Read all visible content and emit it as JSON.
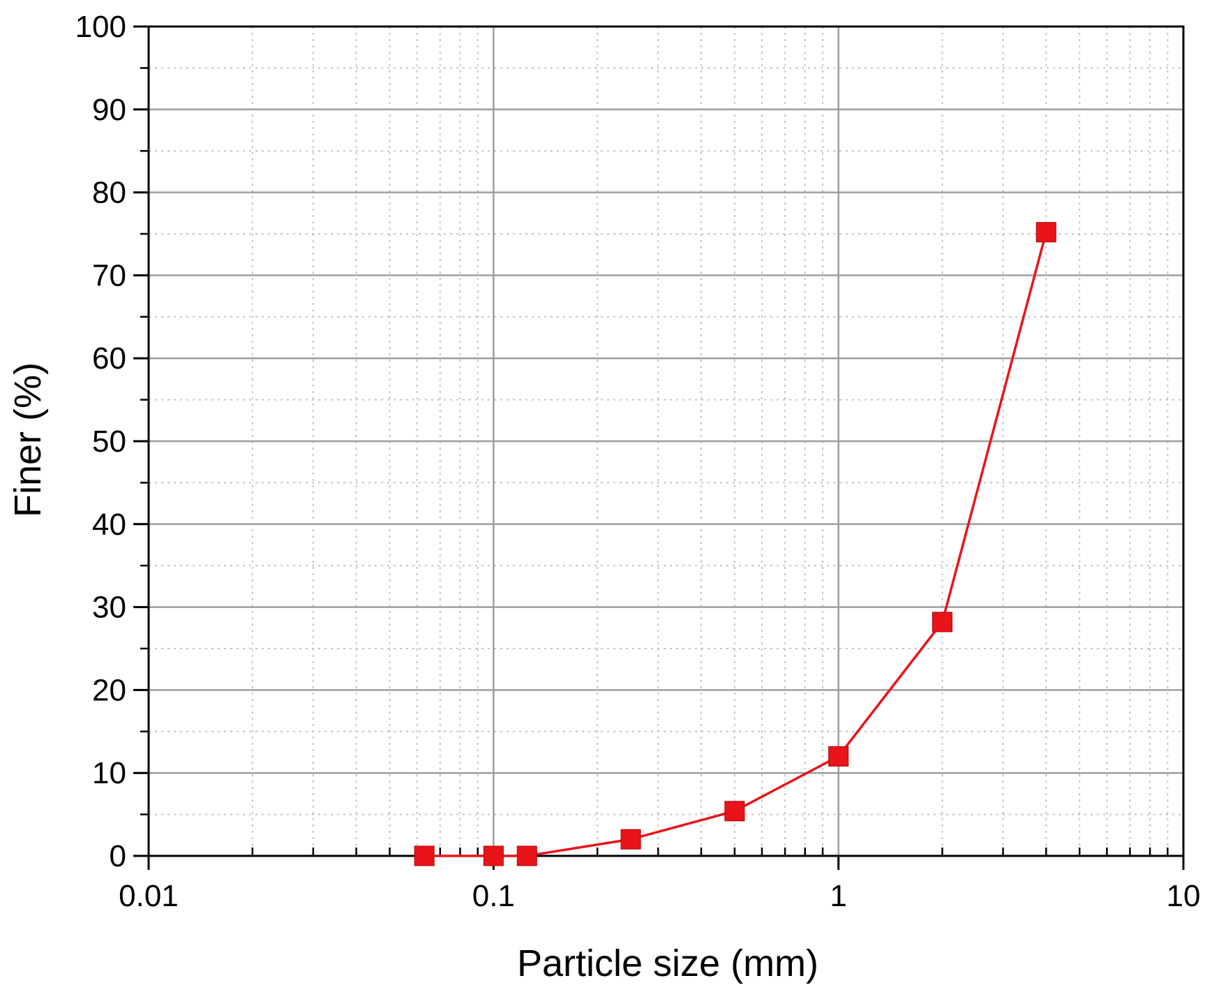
{
  "chart_data": {
    "type": "line",
    "xlabel": "Particle size (mm)",
    "ylabel": "Finer (%)",
    "x_scale": "log",
    "xlim": [
      0.01,
      10
    ],
    "ylim": [
      0,
      100
    ],
    "x_ticks": [
      {
        "value": 0.01,
        "label": "0.01"
      },
      {
        "value": 0.1,
        "label": "0.1"
      },
      {
        "value": 1,
        "label": "1"
      },
      {
        "value": 10,
        "label": "10"
      }
    ],
    "y_ticks": [
      {
        "value": 0,
        "label": "0"
      },
      {
        "value": 10,
        "label": "10"
      },
      {
        "value": 20,
        "label": "20"
      },
      {
        "value": 30,
        "label": "30"
      },
      {
        "value": 40,
        "label": "40"
      },
      {
        "value": 50,
        "label": "50"
      },
      {
        "value": 60,
        "label": "60"
      },
      {
        "value": 70,
        "label": "70"
      },
      {
        "value": 80,
        "label": "80"
      },
      {
        "value": 90,
        "label": "90"
      },
      {
        "value": 100,
        "label": "100"
      }
    ],
    "grid": true,
    "minor_grid": true,
    "series": [
      {
        "color": "#e8141a",
        "marker": "square",
        "x": [
          0.063,
          0.1,
          0.125,
          0.25,
          0.5,
          1,
          2,
          4
        ],
        "y": [
          0,
          0,
          0,
          2,
          5.4,
          12,
          28.2,
          75.2
        ]
      }
    ]
  }
}
